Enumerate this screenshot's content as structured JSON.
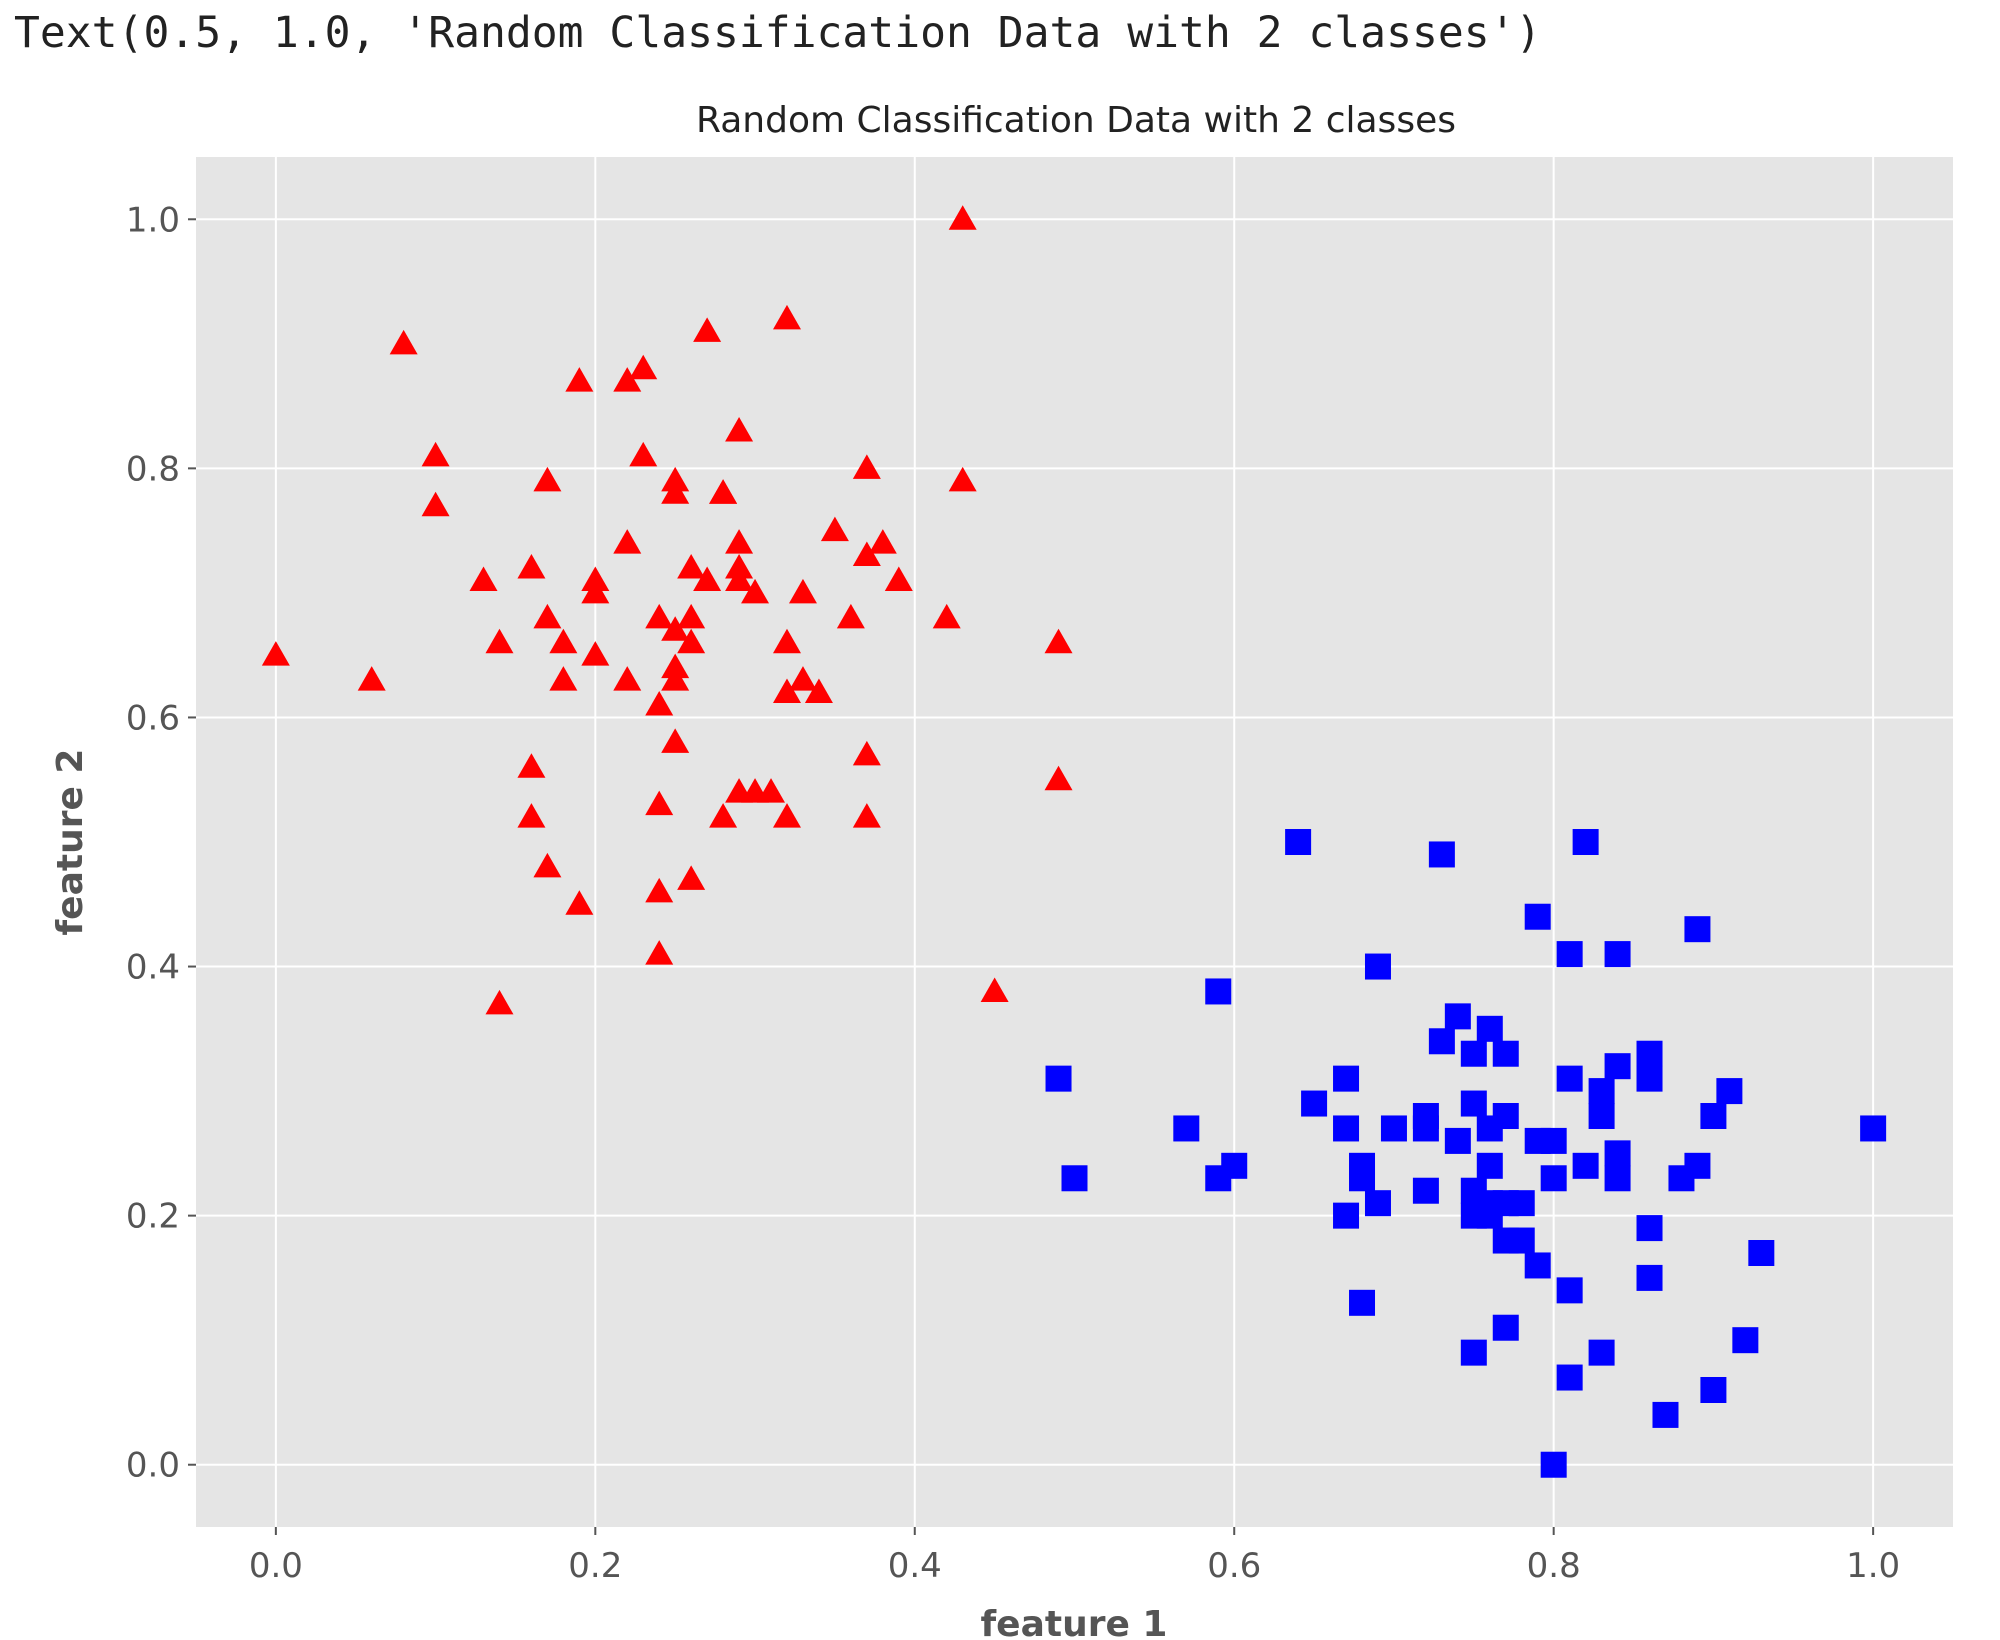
{
  "output_text": "Text(0.5, 1.0, 'Random Classification Data with 2 classes')",
  "chart_data": {
    "type": "scatter",
    "title": "Random Classification Data with 2 classes",
    "xlabel": "feature 1",
    "ylabel": "feature 2",
    "xlim": [
      -0.05,
      1.05
    ],
    "ylim": [
      -0.05,
      1.05
    ],
    "xticks": [
      0.0,
      0.2,
      0.4,
      0.6,
      0.8,
      1.0
    ],
    "yticks": [
      0.0,
      0.2,
      0.4,
      0.6,
      0.8,
      1.0
    ],
    "xtick_labels": [
      "0.0",
      "0.2",
      "0.4",
      "0.6",
      "0.8",
      "1.0"
    ],
    "ytick_labels": [
      "0.0",
      "0.2",
      "0.4",
      "0.6",
      "0.8",
      "1.0"
    ],
    "grid": true,
    "background": "#e5e5e5",
    "series": [
      {
        "marker": "triangle",
        "color": "#ff0000",
        "points": [
          [
            0.43,
            1.0
          ],
          [
            0.08,
            0.9
          ],
          [
            0.27,
            0.91
          ],
          [
            0.32,
            0.92
          ],
          [
            0.19,
            0.87
          ],
          [
            0.22,
            0.87
          ],
          [
            0.23,
            0.88
          ],
          [
            0.29,
            0.83
          ],
          [
            0.1,
            0.81
          ],
          [
            0.23,
            0.81
          ],
          [
            0.37,
            0.8
          ],
          [
            0.43,
            0.79
          ],
          [
            0.17,
            0.79
          ],
          [
            0.25,
            0.79
          ],
          [
            0.25,
            0.78
          ],
          [
            0.28,
            0.78
          ],
          [
            0.28,
            0.78
          ],
          [
            0.1,
            0.77
          ],
          [
            0.35,
            0.75
          ],
          [
            0.22,
            0.74
          ],
          [
            0.29,
            0.74
          ],
          [
            0.37,
            0.73
          ],
          [
            0.38,
            0.74
          ],
          [
            0.26,
            0.72
          ],
          [
            0.29,
            0.72
          ],
          [
            0.16,
            0.72
          ],
          [
            0.13,
            0.71
          ],
          [
            0.2,
            0.71
          ],
          [
            0.27,
            0.71
          ],
          [
            0.29,
            0.71
          ],
          [
            0.39,
            0.71
          ],
          [
            0.2,
            0.7
          ],
          [
            0.3,
            0.7
          ],
          [
            0.33,
            0.7
          ],
          [
            0.17,
            0.68
          ],
          [
            0.24,
            0.68
          ],
          [
            0.25,
            0.67
          ],
          [
            0.26,
            0.68
          ],
          [
            0.36,
            0.68
          ],
          [
            0.42,
            0.68
          ],
          [
            0.0,
            0.65
          ],
          [
            0.14,
            0.66
          ],
          [
            0.18,
            0.66
          ],
          [
            0.2,
            0.65
          ],
          [
            0.26,
            0.66
          ],
          [
            0.32,
            0.66
          ],
          [
            0.49,
            0.66
          ],
          [
            0.06,
            0.63
          ],
          [
            0.18,
            0.63
          ],
          [
            0.22,
            0.63
          ],
          [
            0.25,
            0.64
          ],
          [
            0.25,
            0.63
          ],
          [
            0.33,
            0.63
          ],
          [
            0.32,
            0.62
          ],
          [
            0.34,
            0.62
          ],
          [
            0.24,
            0.61
          ],
          [
            0.25,
            0.58
          ],
          [
            0.37,
            0.57
          ],
          [
            0.16,
            0.56
          ],
          [
            0.29,
            0.54
          ],
          [
            0.3,
            0.54
          ],
          [
            0.31,
            0.54
          ],
          [
            0.49,
            0.55
          ],
          [
            0.16,
            0.52
          ],
          [
            0.24,
            0.53
          ],
          [
            0.28,
            0.52
          ],
          [
            0.32,
            0.52
          ],
          [
            0.37,
            0.52
          ],
          [
            0.17,
            0.48
          ],
          [
            0.26,
            0.47
          ],
          [
            0.19,
            0.45
          ],
          [
            0.24,
            0.46
          ],
          [
            0.24,
            0.41
          ],
          [
            0.14,
            0.37
          ],
          [
            0.45,
            0.38
          ]
        ]
      },
      {
        "marker": "square",
        "color": "#0000ff",
        "points": [
          [
            0.64,
            0.5
          ],
          [
            0.73,
            0.49
          ],
          [
            0.82,
            0.5
          ],
          [
            0.79,
            0.44
          ],
          [
            0.89,
            0.43
          ],
          [
            0.81,
            0.41
          ],
          [
            0.84,
            0.41
          ],
          [
            0.69,
            0.4
          ],
          [
            0.59,
            0.38
          ],
          [
            0.74,
            0.36
          ],
          [
            0.76,
            0.35
          ],
          [
            0.73,
            0.34
          ],
          [
            0.75,
            0.33
          ],
          [
            0.77,
            0.33
          ],
          [
            0.86,
            0.33
          ],
          [
            0.84,
            0.32
          ],
          [
            0.49,
            0.31
          ],
          [
            0.67,
            0.31
          ],
          [
            0.81,
            0.31
          ],
          [
            0.83,
            0.3
          ],
          [
            0.86,
            0.31
          ],
          [
            0.91,
            0.3
          ],
          [
            0.65,
            0.29
          ],
          [
            0.75,
            0.29
          ],
          [
            0.83,
            0.28
          ],
          [
            0.72,
            0.28
          ],
          [
            0.9,
            0.28
          ],
          [
            0.7,
            0.27
          ],
          [
            0.72,
            0.27
          ],
          [
            0.76,
            0.27
          ],
          [
            0.77,
            0.28
          ],
          [
            0.57,
            0.27
          ],
          [
            0.67,
            0.27
          ],
          [
            0.74,
            0.26
          ],
          [
            0.79,
            0.26
          ],
          [
            0.8,
            0.26
          ],
          [
            1.0,
            0.27
          ],
          [
            0.84,
            0.25
          ],
          [
            0.6,
            0.24
          ],
          [
            0.68,
            0.24
          ],
          [
            0.76,
            0.24
          ],
          [
            0.82,
            0.24
          ],
          [
            0.59,
            0.23
          ],
          [
            0.68,
            0.23
          ],
          [
            0.88,
            0.23
          ],
          [
            0.89,
            0.24
          ],
          [
            0.5,
            0.23
          ],
          [
            0.72,
            0.22
          ],
          [
            0.75,
            0.22
          ],
          [
            0.8,
            0.23
          ],
          [
            0.84,
            0.23
          ],
          [
            0.69,
            0.21
          ],
          [
            0.76,
            0.21
          ],
          [
            0.77,
            0.21
          ],
          [
            0.78,
            0.21
          ],
          [
            0.67,
            0.2
          ],
          [
            0.75,
            0.2
          ],
          [
            0.76,
            0.2
          ],
          [
            0.86,
            0.19
          ],
          [
            0.77,
            0.18
          ],
          [
            0.78,
            0.18
          ],
          [
            0.79,
            0.16
          ],
          [
            0.93,
            0.17
          ],
          [
            0.86,
            0.15
          ],
          [
            0.81,
            0.14
          ],
          [
            0.68,
            0.13
          ],
          [
            0.77,
            0.11
          ],
          [
            0.75,
            0.09
          ],
          [
            0.83,
            0.09
          ],
          [
            0.92,
            0.1
          ],
          [
            0.81,
            0.07
          ],
          [
            0.9,
            0.06
          ],
          [
            0.87,
            0.04
          ],
          [
            0.8,
            0.0
          ]
        ]
      }
    ]
  }
}
